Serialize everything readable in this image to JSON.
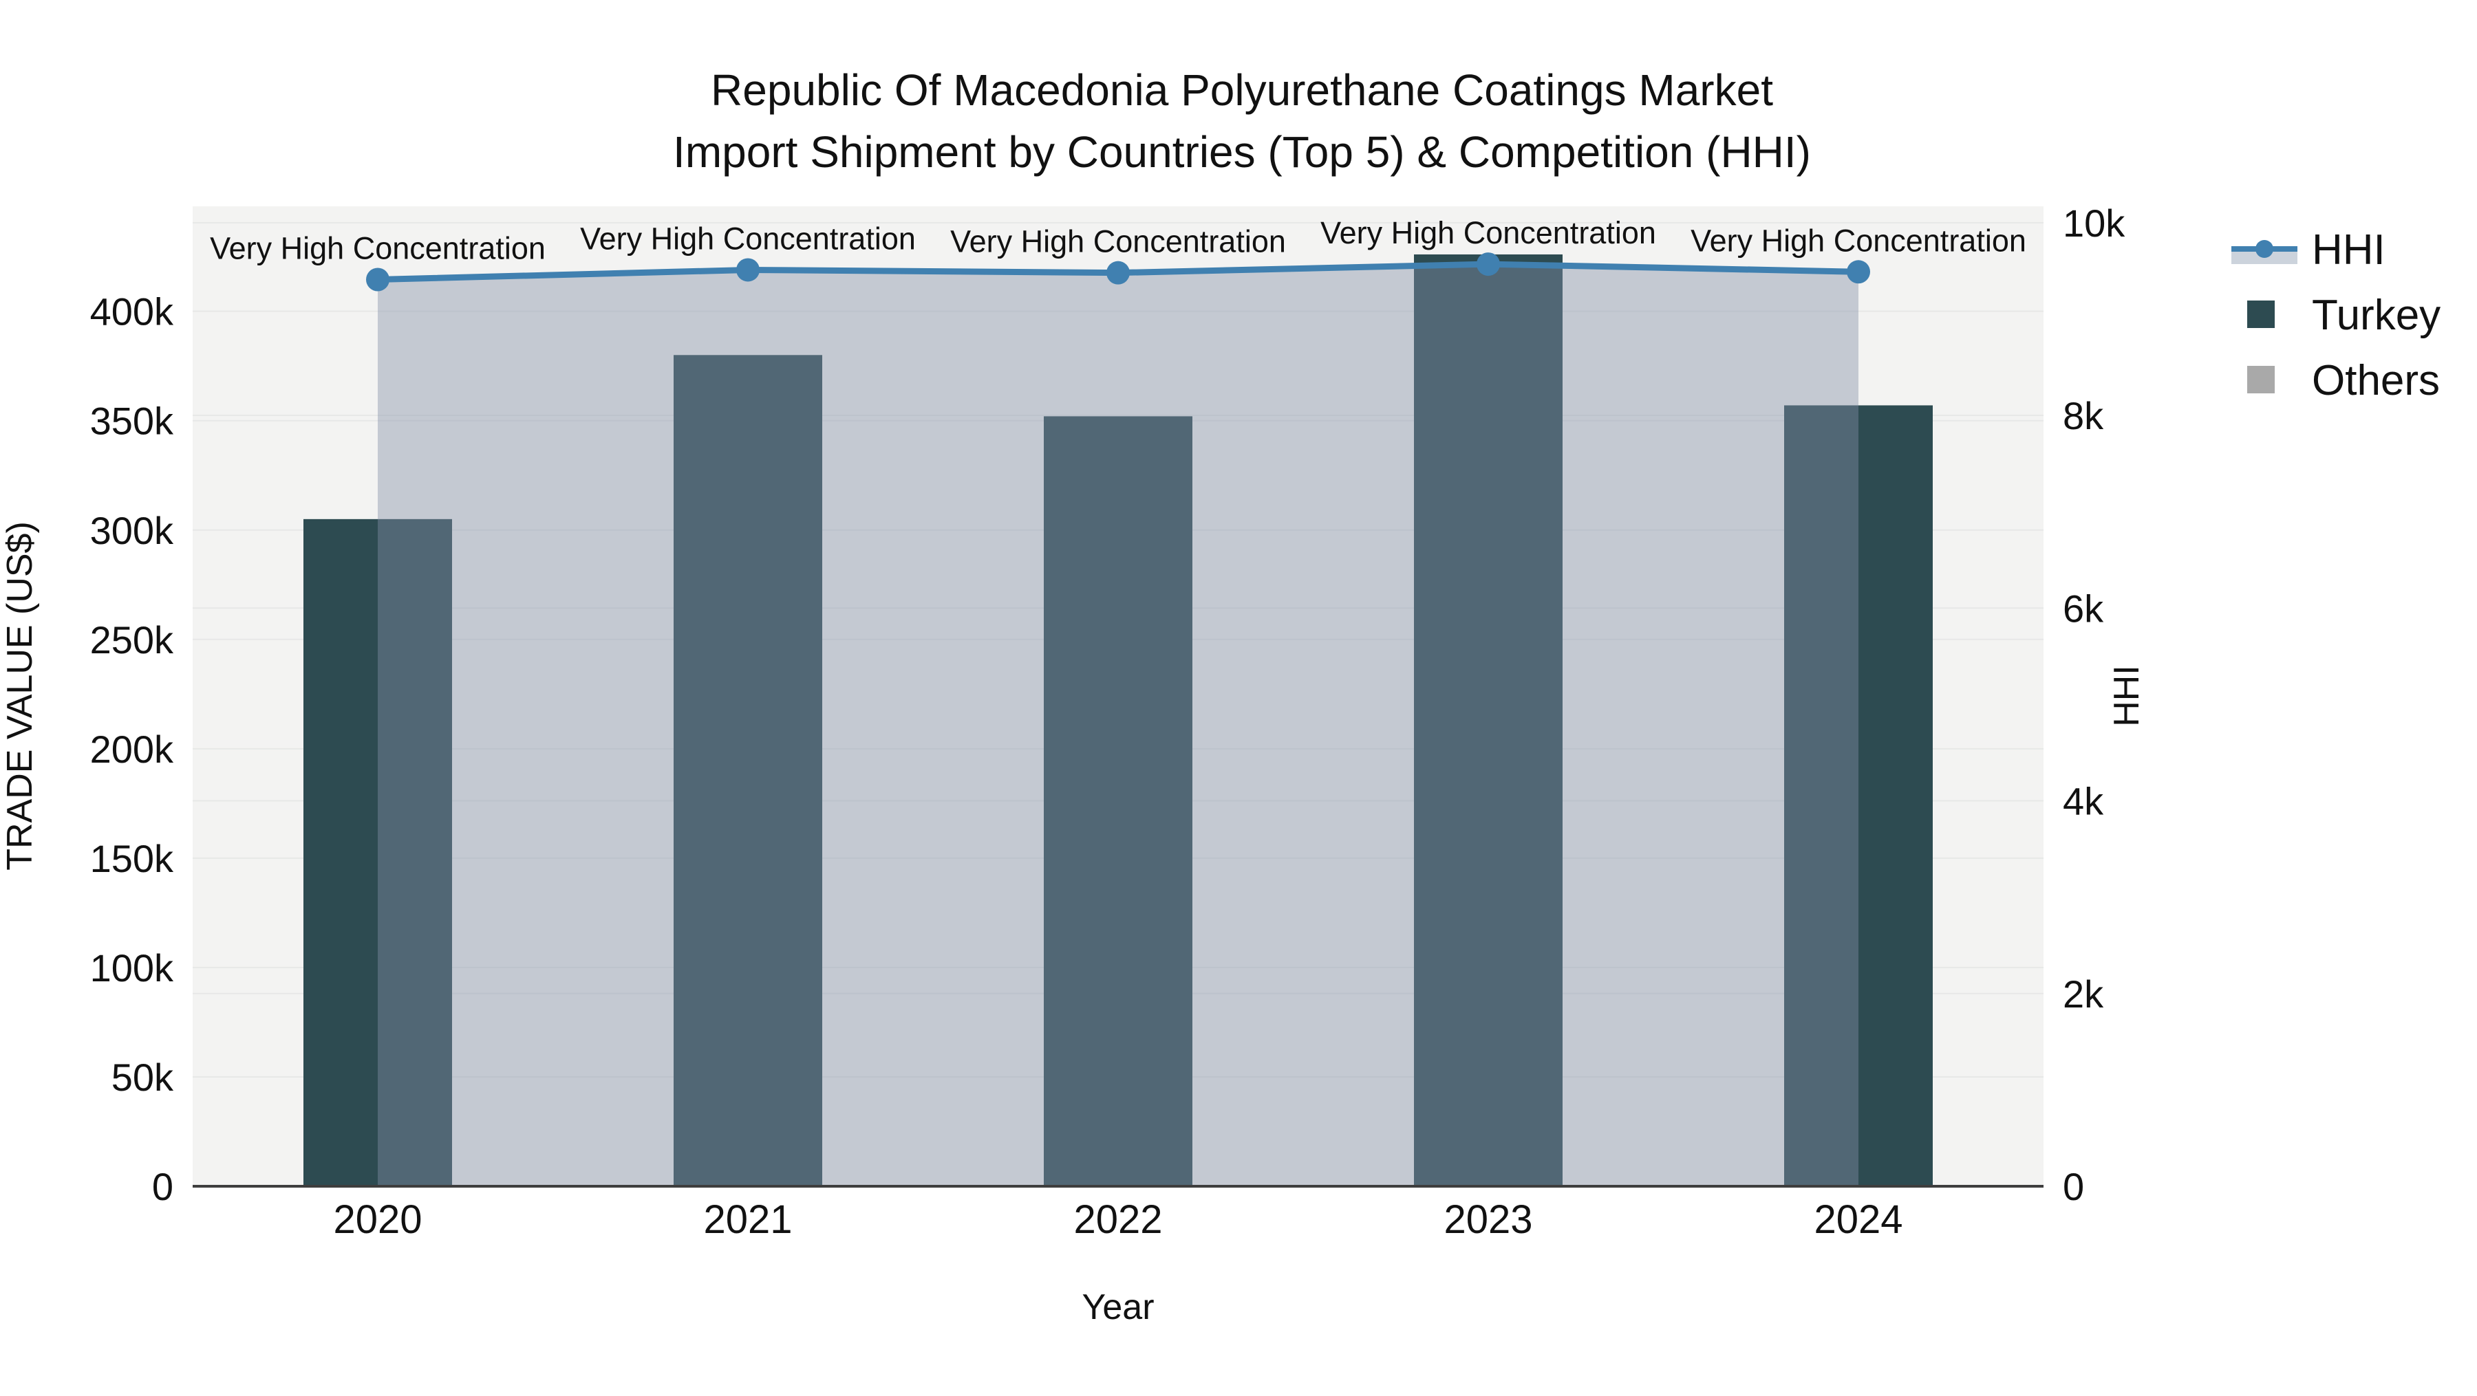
{
  "title": {
    "line1": "Republic Of Macedonia Polyurethane Coatings Market",
    "line2": "Import Shipment by Countries (Top 5) & Competition (HHI)"
  },
  "legend": {
    "items": [
      {
        "label": "HHI",
        "type": "line-with-area-swatch"
      },
      {
        "label": "Turkey",
        "type": "square-swatch"
      },
      {
        "label": "Others",
        "type": "square-swatch"
      }
    ]
  },
  "chart_data": {
    "type": "bar+line",
    "title": "Republic Of Macedonia Polyurethane Coatings Market — Import Shipment by Countries (Top 5) & Competition (HHI)",
    "categories": [
      "2020",
      "2021",
      "2022",
      "2023",
      "2024"
    ],
    "series": [
      {
        "name": "Turkey",
        "type": "bar",
        "axis": "left",
        "values": [
          305000,
          380000,
          352000,
          426000,
          357000
        ]
      },
      {
        "name": "HHI",
        "type": "line+area",
        "axis": "right",
        "values": [
          9410,
          9510,
          9480,
          9570,
          9490
        ]
      }
    ],
    "legend_note": "Others appears in legend only; no visible bars in plot",
    "annotations": [
      "Very High Concentration",
      "Very High Concentration",
      "Very High Concentration",
      "Very High Concentration",
      "Very High Concentration"
    ],
    "xlabel": "Year",
    "ylabel_left": "TRADE VALUE (US$)",
    "ylabel_right": "HHI",
    "left_axis": {
      "max": 448000,
      "ticks": [
        {
          "v": 0,
          "label": "0"
        },
        {
          "v": 50000,
          "label": "50k"
        },
        {
          "v": 100000,
          "label": "100k"
        },
        {
          "v": 150000,
          "label": "150k"
        },
        {
          "v": 200000,
          "label": "200k"
        },
        {
          "v": 250000,
          "label": "250k"
        },
        {
          "v": 300000,
          "label": "300k"
        },
        {
          "v": 350000,
          "label": "350k"
        },
        {
          "v": 400000,
          "label": "400k"
        }
      ]
    },
    "right_axis": {
      "max": 10170,
      "ticks": [
        {
          "v": 0,
          "label": "0"
        },
        {
          "v": 2000,
          "label": "2k"
        },
        {
          "v": 4000,
          "label": "4k"
        },
        {
          "v": 6000,
          "label": "6k"
        },
        {
          "v": 8000,
          "label": "8k"
        },
        {
          "v": 10000,
          "label": "10k"
        }
      ]
    },
    "grid": true,
    "legend_position": "right-outside-top"
  },
  "colors": {
    "bar_turkey": "#2d4b51",
    "others_swatch": "#a9a9a9",
    "hhi_line": "#4080b0",
    "hhi_area": "rgba(130,144,166,0.42)",
    "hhi_area_over_white": "#ccd3dc",
    "plot_background": "#f3f3f2",
    "gridline": "#e7e8e7",
    "axis_spine": "#3e3e3e",
    "text": "#111111"
  }
}
